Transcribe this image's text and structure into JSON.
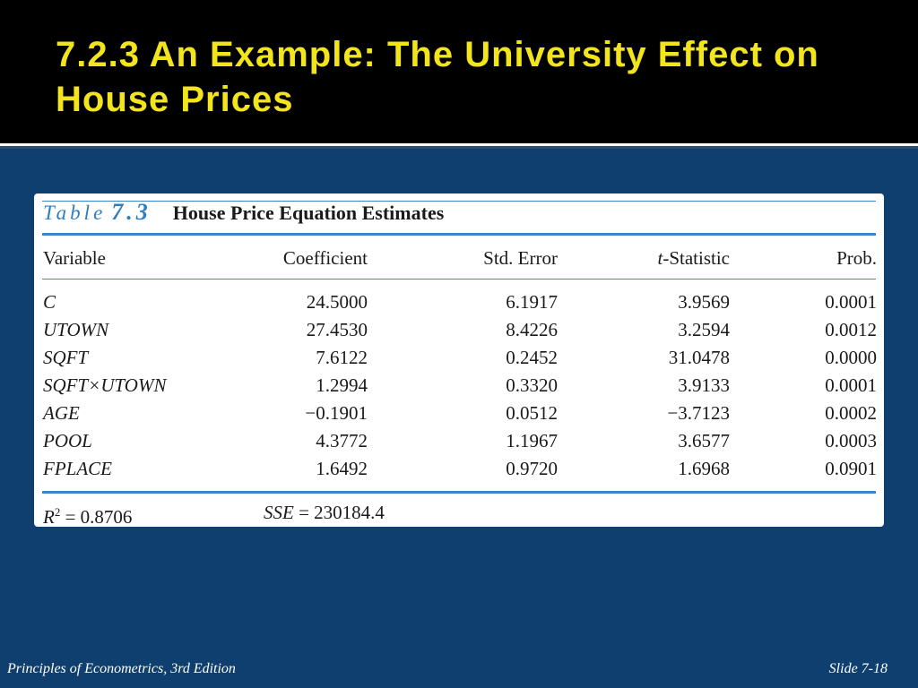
{
  "slide": {
    "title": "7.2.3 An Example: The University Effect on House Prices",
    "footer_left": "Principles of Econometrics, 3rd Edition",
    "footer_right": "Slide 7-18"
  },
  "table": {
    "label": "Table",
    "number": "7.3",
    "name": "House Price Equation Estimates",
    "headers": {
      "variable": "Variable",
      "coefficient": "Coefficient",
      "std_error": "Std. Error",
      "t_statistic": "-Statistic",
      "t_prefix": "t",
      "prob": "Prob."
    },
    "rows": [
      {
        "variable": "C",
        "coefficient": "24.5000",
        "std_error": "6.1917",
        "t_statistic": "3.9569",
        "prob": "0.0001"
      },
      {
        "variable": "UTOWN",
        "coefficient": "27.4530",
        "std_error": "8.4226",
        "t_statistic": "3.2594",
        "prob": "0.0012"
      },
      {
        "variable": "SQFT",
        "coefficient": "7.6122",
        "std_error": "0.2452",
        "t_statistic": "31.0478",
        "prob": "0.0000"
      },
      {
        "variable": "SQFT×UTOWN",
        "coefficient": "1.2994",
        "std_error": "0.3320",
        "t_statistic": "3.9133",
        "prob": "0.0001"
      },
      {
        "variable": "AGE",
        "coefficient": "−0.1901",
        "std_error": "0.0512",
        "t_statistic": "−3.7123",
        "prob": "0.0002"
      },
      {
        "variable": "POOL",
        "coefficient": "4.3772",
        "std_error": "1.1967",
        "t_statistic": "3.6577",
        "prob": "0.0003"
      },
      {
        "variable": "FPLACE",
        "coefficient": "1.6492",
        "std_error": "0.9720",
        "t_statistic": "1.6968",
        "prob": "0.0901"
      }
    ],
    "summary": {
      "r2_label": "R",
      "r2_sup": "2",
      "r2_value": " = 0.8706",
      "sse_label": "SSE",
      "sse_value": " = 230184.4"
    }
  }
}
